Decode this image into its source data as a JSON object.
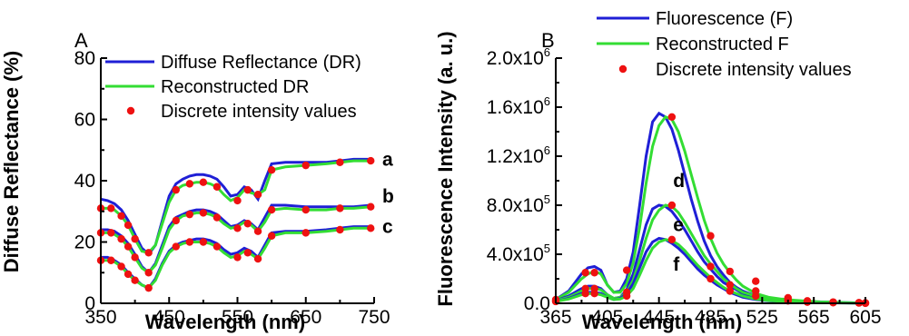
{
  "chart_data": [
    {
      "panel": "A",
      "type": "line",
      "xlabel": "Wavelength (nm)",
      "ylabel": "Diffuse Reflectance (%)",
      "xlim": [
        350,
        750
      ],
      "ylim": [
        0,
        80
      ],
      "xticks": [
        "350",
        "450",
        "550",
        "650",
        "750"
      ],
      "yticks": [
        "0",
        "20",
        "40",
        "60",
        "80"
      ],
      "xminor": [
        400,
        500,
        600,
        700
      ],
      "yminor": [
        10,
        30,
        50,
        70
      ],
      "legend_position": "top-right",
      "legend": [
        {
          "label": "Diffuse Reflectance (DR)",
          "color": "#1f1fd6",
          "style": "line"
        },
        {
          "label": "Reconstructed DR",
          "color": "#33dd33",
          "style": "line"
        },
        {
          "label": "Discrete intensity values",
          "color": "#ee1111",
          "style": "dot"
        }
      ],
      "curve_labels": [
        {
          "text": "a",
          "x": 762,
          "y": 47
        },
        {
          "text": "b",
          "x": 762,
          "y": 35
        },
        {
          "text": "c",
          "x": 762,
          "y": 25
        }
      ],
      "series": [
        {
          "name": "a",
          "x": [
            350,
            360,
            370,
            380,
            390,
            400,
            410,
            420,
            430,
            440,
            450,
            460,
            470,
            480,
            490,
            500,
            510,
            520,
            530,
            540,
            550,
            560,
            570,
            580,
            590,
            600,
            620,
            650,
            680,
            700,
            720,
            745
          ],
          "measured": [
            34,
            33.5,
            32.5,
            30.5,
            27,
            22.5,
            18,
            16,
            19,
            27,
            35,
            39,
            40.5,
            41.5,
            42,
            42,
            41.5,
            40.5,
            38,
            35,
            35.5,
            38,
            37,
            34,
            40,
            45.5,
            46,
            46,
            46,
            46.5,
            47,
            47
          ],
          "reconstructed": [
            31,
            31,
            30.5,
            28.5,
            25.5,
            21,
            17,
            16.5,
            19,
            26,
            33,
            37,
            38.5,
            39,
            39.5,
            39.5,
            39,
            38,
            35.5,
            33.5,
            34.5,
            37,
            36,
            35.5,
            37,
            43.5,
            44.5,
            45,
            45.5,
            46,
            46.5,
            46.5
          ]
        },
        {
          "name": "b",
          "x": [
            350,
            360,
            370,
            380,
            390,
            400,
            410,
            420,
            430,
            440,
            450,
            460,
            470,
            480,
            490,
            500,
            510,
            520,
            530,
            540,
            550,
            560,
            570,
            580,
            590,
            600,
            620,
            650,
            680,
            700,
            720,
            745
          ],
          "measured": [
            24,
            24,
            23.5,
            22,
            19.5,
            16,
            12,
            10,
            13,
            19,
            25,
            28,
            29,
            30,
            30.5,
            30.5,
            30,
            29,
            27,
            25,
            25.5,
            27,
            26,
            24,
            28,
            32,
            32,
            31.5,
            31.5,
            31.5,
            31.5,
            32
          ],
          "reconstructed": [
            23,
            23,
            22.5,
            21,
            18.5,
            15,
            11.5,
            10,
            12.5,
            18,
            24,
            27,
            28.5,
            29,
            29.5,
            29.5,
            29,
            28,
            26,
            24.5,
            25,
            26.5,
            25.5,
            23.5,
            26.5,
            30.5,
            31,
            30.5,
            30.5,
            31,
            31,
            31.5
          ]
        },
        {
          "name": "c",
          "x": [
            350,
            360,
            370,
            380,
            390,
            400,
            410,
            420,
            430,
            440,
            450,
            460,
            470,
            480,
            490,
            500,
            510,
            520,
            530,
            540,
            550,
            560,
            570,
            580,
            590,
            600,
            620,
            650,
            680,
            700,
            720,
            745
          ],
          "measured": [
            15,
            15,
            14,
            12.5,
            10,
            8,
            6,
            5,
            8,
            13,
            17,
            19,
            20,
            20.5,
            21,
            21,
            20.5,
            19.5,
            17.5,
            16,
            16.5,
            18,
            17,
            15,
            19,
            23,
            23.5,
            23.5,
            24,
            24.5,
            25,
            25
          ],
          "reconstructed": [
            14,
            14,
            13.5,
            12,
            9.5,
            7.5,
            6,
            5,
            7.5,
            12.5,
            16.5,
            18.5,
            19.5,
            20,
            20,
            20,
            19.5,
            18.5,
            16.5,
            15,
            15.5,
            17,
            16,
            14.5,
            18,
            22,
            23,
            23,
            23.5,
            24,
            24.5,
            24.5
          ]
        }
      ],
      "discrete": {
        "x": [
          350,
          365,
          380,
          390,
          400,
          420,
          460,
          480,
          500,
          520,
          550,
          565,
          580,
          600,
          650,
          700,
          745
        ],
        "a": [
          31,
          31,
          28.5,
          25.5,
          21,
          16.5,
          37,
          39,
          39.5,
          38,
          33.5,
          37,
          35.5,
          43.5,
          45,
          46,
          46.5
        ],
        "b": [
          23,
          23,
          21,
          18.5,
          15,
          10,
          27,
          29,
          29.5,
          28,
          24.5,
          26,
          23.5,
          30.5,
          30.5,
          31,
          31.5
        ],
        "c": [
          14,
          14,
          12,
          9.5,
          7.5,
          5,
          18.5,
          20,
          20,
          18.5,
          15,
          16.5,
          14.5,
          22,
          23,
          24,
          24.5
        ]
      }
    },
    {
      "panel": "B",
      "type": "line",
      "xlabel": "Wavelength (nm)",
      "ylabel": "Fluorescence Intensity (a. u.)",
      "xlim": [
        365,
        605
      ],
      "ylim": [
        0,
        2000000.0
      ],
      "xticks": [
        "365",
        "405",
        "445",
        "485",
        "525",
        "565",
        "605"
      ],
      "yticks": [
        {
          "base": "0.0",
          "exp": ""
        },
        {
          "base": "4.0x10",
          "exp": "5"
        },
        {
          "base": "8.0x10",
          "exp": "5"
        },
        {
          "base": "1.2x10",
          "exp": "6"
        },
        {
          "base": "1.6x10",
          "exp": "6"
        },
        {
          "base": "2.0x10",
          "exp": "6"
        }
      ],
      "ytick_values": [
        0,
        400000,
        800000,
        1200000,
        1600000,
        2000000
      ],
      "xminor": [
        385,
        425,
        465,
        505,
        545,
        585
      ],
      "yminor": [
        200000,
        600000,
        1000000,
        1400000,
        1800000
      ],
      "legend_position": "top-right",
      "legend": [
        {
          "label": "Fluorescence (F)",
          "color": "#1f1fd6",
          "style": "line"
        },
        {
          "label": "Reconstructed F",
          "color": "#33dd33",
          "style": "line"
        },
        {
          "label": "Discrete intensity values",
          "color": "#ee1111",
          "style": "dot"
        }
      ],
      "curve_labels": [
        {
          "text": "d",
          "x": 456,
          "y": 1000000.0
        },
        {
          "text": "e",
          "x": 456,
          "y": 640000.0
        },
        {
          "text": "f",
          "x": 456,
          "y": 320000.0
        }
      ],
      "series": [
        {
          "name": "d",
          "x": [
            365,
            375,
            385,
            390,
            395,
            400,
            405,
            410,
            415,
            420,
            425,
            430,
            435,
            440,
            445,
            450,
            455,
            460,
            465,
            470,
            475,
            480,
            485,
            490,
            495,
            500,
            505,
            510,
            520,
            530,
            540,
            550,
            560,
            570,
            580,
            590,
            600,
            605
          ],
          "measured": [
            30000.0,
            100000.0,
            240000.0,
            290000.0,
            300000.0,
            270000.0,
            150000.0,
            90000.0,
            100000.0,
            200000.0,
            420000.0,
            800000.0,
            1200000.0,
            1480000.0,
            1550000.0,
            1520000.0,
            1420000.0,
            1250000.0,
            1050000.0,
            850000.0,
            670000.0,
            510000.0,
            390000.0,
            300000.0,
            230000.0,
            170000.0,
            130000.0,
            100000.0,
            60000.0,
            40000.0,
            30000.0,
            20000.0,
            15000.0,
            10000.0,
            8000.0,
            5000.0,
            3000.0,
            2000.0
          ],
          "reconstructed": [
            30000.0,
            90000.0,
            200000.0,
            240000.0,
            260000.0,
            240000.0,
            150000.0,
            90000.0,
            90000.0,
            160000.0,
            330000.0,
            620000.0,
            980000.0,
            1280000.0,
            1450000.0,
            1520000.0,
            1500000.0,
            1400000.0,
            1240000.0,
            1050000.0,
            860000.0,
            680000.0,
            530000.0,
            410000.0,
            320000.0,
            250000.0,
            190000.0,
            140000.0,
            80000.0,
            50000.0,
            35000.0,
            25000.0,
            18000.0,
            12000.0,
            9000.0,
            6000.0,
            4000.0,
            3000.0
          ]
        },
        {
          "name": "e",
          "x": [
            365,
            375,
            385,
            390,
            395,
            400,
            405,
            410,
            415,
            420,
            425,
            430,
            435,
            440,
            445,
            450,
            455,
            460,
            465,
            470,
            475,
            480,
            485,
            490,
            495,
            500,
            505,
            510,
            520,
            530,
            540,
            550,
            560,
            570,
            580,
            590,
            600,
            605
          ],
          "measured": [
            20000.0,
            60000.0,
            120000.0,
            140000.0,
            140000.0,
            120000.0,
            70000.0,
            40000.0,
            50000.0,
            110000.0,
            240000.0,
            440000.0,
            640000.0,
            770000.0,
            800000.0,
            790000.0,
            750000.0,
            680000.0,
            600000.0,
            510000.0,
            420000.0,
            340000.0,
            280000.0,
            220000.0,
            170000.0,
            140000.0,
            110000.0,
            80000.0,
            50000.0,
            30000.0,
            20000.0,
            15000.0,
            10000.0,
            8000.0,
            5000.0,
            4000.0,
            3000.0,
            2000.0
          ],
          "reconstructed": [
            20000.0,
            50000.0,
            100000.0,
            120000.0,
            120000.0,
            110000.0,
            70000.0,
            40000.0,
            50000.0,
            90000.0,
            190000.0,
            350000.0,
            530000.0,
            680000.0,
            760000.0,
            800000.0,
            790000.0,
            740000.0,
            660000.0,
            570000.0,
            480000.0,
            390000.0,
            320000.0,
            260000.0,
            200000.0,
            160000.0,
            120000.0,
            90000.0,
            60000.0,
            35000.0,
            25000.0,
            18000.0,
            12000.0,
            9000.0,
            6000.0,
            4000.0,
            3000.0,
            2000.0
          ]
        },
        {
          "name": "f",
          "x": [
            365,
            375,
            385,
            390,
            395,
            400,
            405,
            410,
            415,
            420,
            425,
            430,
            435,
            440,
            445,
            450,
            455,
            460,
            465,
            470,
            475,
            480,
            485,
            490,
            495,
            500,
            505,
            510,
            520,
            530,
            540,
            550,
            560,
            570,
            580,
            590,
            600,
            605
          ],
          "measured": [
            15000.0,
            40000.0,
            80000.0,
            90000.0,
            90000.0,
            80000.0,
            50000.0,
            30000.0,
            40000.0,
            80000.0,
            160000.0,
            290000.0,
            420000.0,
            500000.0,
            530000.0,
            520000.0,
            490000.0,
            450000.0,
            400000.0,
            340000.0,
            280000.0,
            230000.0,
            190000.0,
            150000.0,
            120000.0,
            90000.0,
            70000.0,
            50000.0,
            30000.0,
            20000.0,
            15000.0,
            10000.0,
            7000.0,
            5000.0,
            4000.0,
            3000.0,
            2000.0,
            1000.0
          ],
          "reconstructed": [
            15000.0,
            35000.0,
            70000.0,
            80000.0,
            80000.0,
            70000.0,
            50000.0,
            30000.0,
            35000.0,
            60000.0,
            120000.0,
            230000.0,
            350000.0,
            450000.0,
            500000.0,
            520000.0,
            510000.0,
            480000.0,
            430000.0,
            370000.0,
            310000.0,
            260000.0,
            210000.0,
            170000.0,
            130000.0,
            100000.0,
            80000.0,
            60000.0,
            35000.0,
            22000.0,
            16000.0,
            11000.0,
            8000.0,
            6000.0,
            4000.0,
            3000.0,
            2000.0,
            1000.0
          ]
        }
      ],
      "discrete": {
        "x": [
          365,
          388,
          395,
          420,
          455,
          485,
          500,
          520,
          545,
          560,
          580,
          600,
          605
        ],
        "d": [
          30000.0,
          250000.0,
          250000.0,
          270000.0,
          1520000.0,
          550000.0,
          260000.0,
          180000.0,
          45000.0,
          20000.0,
          10000.0,
          5000.0,
          3000.0
        ],
        "e": [
          20000.0,
          120000.0,
          120000.0,
          90000.0,
          800000.0,
          300000.0,
          150000.0,
          100000.0,
          30000.0,
          15000.0,
          8000.0,
          4000.0,
          2000.0
        ],
        "f": [
          15000.0,
          80000.0,
          80000.0,
          60000.0,
          520000.0,
          200000.0,
          100000.0,
          60000.0,
          20000.0,
          10000.0,
          5000.0,
          3000.0,
          1000.0
        ]
      }
    }
  ]
}
